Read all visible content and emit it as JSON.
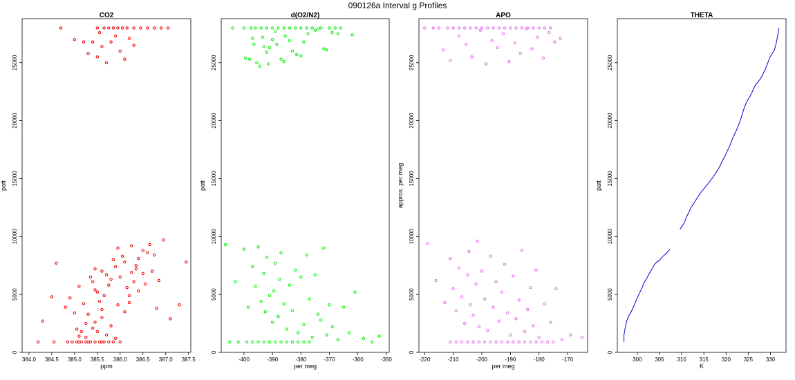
{
  "figure": {
    "title": "090126a   Interval g Profiles"
  },
  "chart_data": [
    {
      "type": "scatter",
      "title": "CO2",
      "xlabel": "ppm",
      "ylabel": "patt",
      "color": "#ee0000",
      "xlim": [
        383.85,
        387.55
      ],
      "ylim": [
        0,
        28800
      ],
      "xticks": [
        "384.0",
        "384.5",
        "385.0",
        "385.5",
        "386.0",
        "386.5",
        "387.0",
        "387.5"
      ],
      "yticks": [
        "0",
        "5000",
        "10000",
        "15000",
        "20000",
        "25000"
      ],
      "points": {
        "x": [
          384.3,
          384.5,
          384.6,
          384.8,
          384.9,
          385.0,
          385.05,
          385.1,
          385.15,
          385.2,
          385.25,
          385.3,
          385.35,
          385.4,
          385.45,
          385.5,
          385.55,
          385.6,
          385.6,
          385.65,
          385.7,
          385.75,
          385.8,
          385.85,
          385.9,
          385.95,
          386.0,
          386.05,
          386.1,
          386.15,
          386.2,
          386.25,
          386.3,
          386.35,
          386.4,
          386.5,
          386.6,
          386.7,
          386.8,
          386.95,
          387.1,
          387.3,
          387.45,
          385.3,
          385.4,
          385.5,
          385.55,
          385.6,
          385.7,
          385.8,
          385.9,
          386.0,
          386.1,
          386.2,
          386.3,
          385.5,
          385.65,
          385.75,
          385.85,
          385.95,
          386.05,
          386.15,
          386.3,
          386.45,
          386.6,
          386.75,
          386.9,
          387.05,
          385.2,
          385.0,
          384.7,
          385.1,
          385.3,
          385.35,
          385.45,
          385.55,
          385.6,
          385.65,
          385.75,
          385.85,
          386.0,
          385.7,
          385.9,
          385.8,
          385.6,
          385.45,
          385.95,
          386.1,
          386.25,
          386.4,
          386.55,
          386.2,
          386.35,
          386.5,
          386.65,
          386.75,
          386.85,
          385.5,
          385.4,
          385.25,
          385.15,
          385.05,
          384.95,
          385.1,
          384.2,
          384.55,
          384.85,
          385.25,
          385.45
        ],
        "y": [
          2700,
          4800,
          7700,
          3900,
          4700,
          3400,
          2000,
          5700,
          1800,
          4200,
          2500,
          3300,
          6500,
          6100,
          7200,
          5200,
          4400,
          7000,
          3000,
          4900,
          6700,
          5800,
          6300,
          8000,
          7400,
          9000,
          6500,
          8300,
          7800,
          5600,
          4900,
          9200,
          6100,
          7500,
          5300,
          8800,
          8600,
          7000,
          3800,
          9700,
          2900,
          4100,
          7800,
          25800,
          26800,
          25500,
          27600,
          26400,
          25000,
          26800,
          27300,
          26000,
          25300,
          27100,
          26500,
          28000,
          28000,
          28000,
          28000,
          28000,
          28000,
          28000,
          28000,
          28000,
          28000,
          28000,
          28000,
          28000,
          26800,
          27000,
          28000,
          900,
          900,
          900,
          900,
          900,
          900,
          900,
          900,
          900,
          900,
          1500,
          1200,
          2300,
          3700,
          5400,
          4100,
          3500,
          6900,
          8100,
          5900,
          4300,
          7200,
          6800,
          9300,
          8400,
          6200,
          1800,
          2100,
          900,
          900,
          900,
          900,
          1400,
          900,
          900,
          900,
          1300,
          2600
        ]
      }
    },
    {
      "type": "scatter",
      "title": "d(O2/N2)",
      "xlabel": "per meg",
      "ylabel": "patt",
      "color": "#00ee00",
      "xlim": [
        -408,
        -349
      ],
      "ylim": [
        0,
        28800
      ],
      "xticks": [
        "-400",
        "-390",
        "-380",
        "-370",
        "-360",
        "-350"
      ],
      "yticks": [
        "0",
        "5000",
        "10000",
        "15000",
        "20000",
        "25000"
      ],
      "points": {
        "x": [
          -406.5,
          -403,
          -400,
          -398.5,
          -397,
          -396,
          -395,
          -394,
          -393,
          -392.5,
          -392,
          -391,
          -390,
          -389.5,
          -389,
          -388,
          -387.5,
          -387,
          -386,
          -385,
          -384,
          -383,
          -382,
          -381,
          -380,
          -379,
          -378,
          -377,
          -376,
          -375,
          -374,
          -373,
          -372,
          -371,
          -370,
          -369,
          -367,
          -365,
          -363,
          -361,
          -358,
          -355,
          -352.5,
          -405,
          -402,
          -399,
          -397,
          -395,
          -393,
          -391,
          -389,
          -387,
          -385,
          -383,
          -381,
          -379,
          -377,
          -404,
          -400,
          -397.5,
          -396,
          -394,
          -392,
          -390,
          -388,
          -386,
          -384,
          -382,
          -380,
          -378,
          -376,
          -373,
          -370,
          -368,
          -366,
          -362,
          -398,
          -396.5,
          -394.5,
          -393.5,
          -392,
          -391,
          -389,
          -386,
          -384,
          -380,
          -375,
          -371,
          -367,
          -399.5,
          -397,
          -395.5,
          -393,
          -391.5,
          -390,
          -388.5,
          -387,
          -385.5,
          -383,
          -381.5,
          -379,
          -377.5,
          -374,
          -372,
          -369
        ],
        "y": [
          9300,
          6100,
          8900,
          3900,
          7400,
          5700,
          9100,
          4400,
          6800,
          3500,
          8200,
          4900,
          2600,
          5300,
          7700,
          3100,
          6300,
          8600,
          4200,
          2000,
          5800,
          3600,
          7100,
          1700,
          6500,
          2400,
          8400,
          4600,
          1300,
          6700,
          3300,
          2800,
          9000,
          1500,
          4100,
          2200,
          1100,
          3900,
          1700,
          5200,
          1200,
          900,
          1400,
          900,
          900,
          900,
          900,
          900,
          900,
          900,
          900,
          900,
          900,
          900,
          900,
          900,
          900,
          28000,
          28000,
          28000,
          28000,
          28000,
          28000,
          28000,
          28000,
          28000,
          28000,
          28000,
          28000,
          28000,
          28000,
          28000,
          28000,
          28000,
          28000,
          27400,
          25300,
          26600,
          24700,
          27200,
          25900,
          26300,
          27700,
          25100,
          26900,
          25600,
          27800,
          26100,
          27500,
          25400,
          27100,
          25000,
          26400,
          24900,
          27000,
          26600,
          25300,
          27300,
          26000,
          25700,
          26800,
          27500,
          27900,
          26200,
          27600
        ]
      }
    },
    {
      "type": "scatter",
      "title": "APO",
      "xlabel": "per meg",
      "ylabel": "approx. per meg",
      "color": "#e070e8",
      "xlim": [
        -222,
        -163
      ],
      "ylim": [
        0,
        28800
      ],
      "xticks": [
        "-220",
        "-210",
        "-200",
        "-190",
        "-180",
        "-170"
      ],
      "yticks": [
        "0",
        "5000",
        "10000",
        "15000",
        "20000",
        "25000"
      ],
      "points": {
        "x": [
          -219,
          -216,
          -213,
          -211,
          -210,
          -209,
          -208,
          -207,
          -206,
          -205,
          -204.5,
          -204,
          -203,
          -202,
          -201.5,
          -201,
          -200,
          -199,
          -198,
          -197,
          -196,
          -195,
          -194,
          -193,
          -192,
          -191,
          -190,
          -189,
          -188,
          -187,
          -186,
          -185,
          -184,
          -183,
          -182,
          -181,
          -180,
          -178,
          -176,
          -174,
          -172,
          -169,
          -165,
          -211,
          -209,
          -207,
          -205,
          -203,
          -201,
          -199,
          -197,
          -195,
          -193,
          -191,
          -189,
          -187,
          -185,
          -183,
          -181,
          -179,
          -177,
          -175,
          -220,
          -217,
          -215,
          -212,
          -210,
          -208,
          -206,
          -204,
          -202,
          -200,
          -198,
          -196,
          -194,
          -192,
          -190,
          -188,
          -186,
          -184,
          -182,
          -180,
          -178,
          -176,
          -213.5,
          -211,
          -208,
          -205.5,
          -203.5,
          -200.5,
          -198.5,
          -196.5,
          -194.5,
          -192.5,
          -190.5,
          -188.5,
          -186.5,
          -184.5,
          -182.5,
          -180.5,
          -178.5,
          -176.5,
          -174.5,
          -172.5
        ],
        "y": [
          9400,
          6200,
          4300,
          8100,
          5500,
          3600,
          7300,
          4800,
          2500,
          6700,
          8700,
          4100,
          3200,
          5900,
          9600,
          2200,
          7000,
          4600,
          1900,
          8300,
          3900,
          6100,
          2700,
          5200,
          7600,
          3400,
          1500,
          6600,
          2900,
          4500,
          8800,
          1800,
          3700,
          5600,
          2300,
          7100,
          1300,
          4200,
          2600,
          5500,
          1100,
          1500,
          1300,
          900,
          900,
          900,
          900,
          900,
          900,
          900,
          900,
          900,
          900,
          900,
          900,
          900,
          900,
          900,
          900,
          900,
          900,
          900,
          28000,
          28000,
          28000,
          28000,
          28000,
          28000,
          28000,
          28000,
          28000,
          28000,
          28000,
          28000,
          28000,
          28000,
          28000,
          28000,
          28000,
          28000,
          28000,
          28000,
          28000,
          28000,
          26100,
          25200,
          27300,
          26600,
          25500,
          27800,
          24900,
          26900,
          26300,
          27500,
          25100,
          26700,
          25800,
          27900,
          26200,
          27200,
          25400,
          27600,
          26800,
          27100
        ]
      }
    },
    {
      "type": "line",
      "title": "THETA",
      "xlabel": "K",
      "ylabel": "patt",
      "color": "#0000dd",
      "xlim": [
        295.5,
        333.5
      ],
      "ylim": [
        0,
        28800
      ],
      "xticks": [
        "300",
        "305",
        "310",
        "315",
        "320",
        "325",
        "330"
      ],
      "yticks": [
        "0",
        "5000",
        "10000",
        "15000",
        "20000",
        "25000"
      ],
      "segments": [
        {
          "x": [
            297.0,
            297.0,
            297.3,
            297.6,
            298.0,
            298.5,
            299.2,
            300.0,
            300.6,
            301.1,
            301.5,
            302.0,
            302.7,
            303.3,
            303.9,
            304.4,
            304.9,
            305.3,
            305.8,
            306.4,
            306.9,
            307.3
          ],
          "y": [
            900,
            1500,
            2200,
            2700,
            3100,
            3400,
            4000,
            4700,
            5200,
            5600,
            6000,
            6300,
            6800,
            7200,
            7600,
            7800,
            7900,
            8100,
            8300,
            8500,
            8700,
            8900
          ]
        },
        {
          "x": [
            309.6,
            310.1,
            310.6,
            311.0,
            311.5,
            312.1,
            312.8,
            313.6,
            314.5,
            315.4,
            316.2,
            317.0,
            317.7,
            318.4,
            319.0,
            319.7,
            320.3,
            320.9,
            321.4,
            322.0,
            322.6,
            323.1,
            323.6,
            324.0,
            324.5,
            324.9,
            325.4,
            325.9,
            326.5,
            327.1,
            327.7,
            328.3,
            328.9,
            329.4,
            329.9,
            330.4,
            330.9,
            331.3,
            331.6,
            331.9
          ],
          "y": [
            10600,
            10900,
            11200,
            11600,
            12000,
            12500,
            12900,
            13400,
            13900,
            14300,
            14700,
            15100,
            15500,
            15900,
            16400,
            16900,
            17400,
            17900,
            18400,
            18900,
            19400,
            19900,
            20500,
            21000,
            21500,
            21800,
            22100,
            22500,
            23000,
            23300,
            23600,
            24000,
            24500,
            25000,
            25500,
            25800,
            26100,
            26700,
            27300,
            28000
          ]
        }
      ]
    }
  ]
}
